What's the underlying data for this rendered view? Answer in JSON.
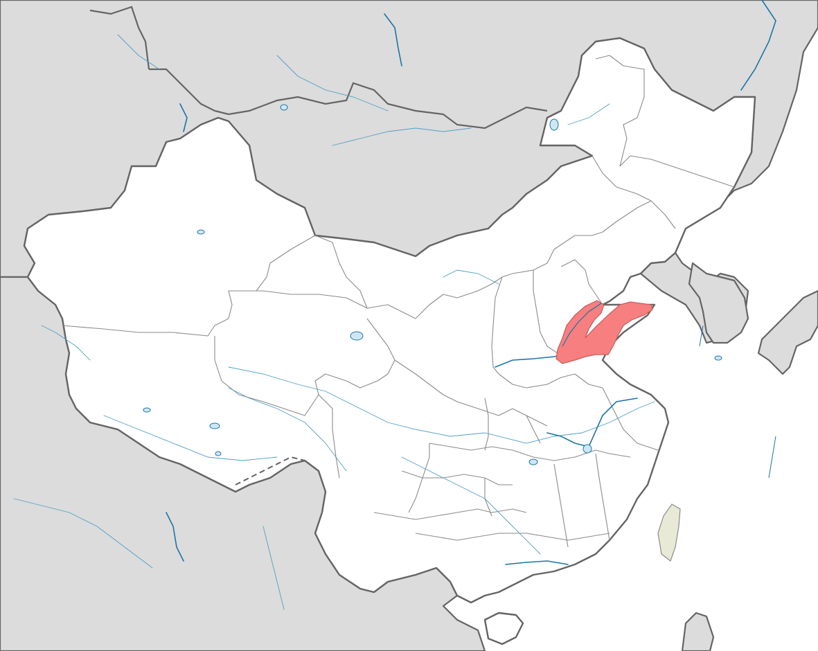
{
  "map": {
    "highlighted_region": "Shandong",
    "highlight_color": "#f77f7f",
    "highlight_stroke": "#c85a5a",
    "taiwan_color": "#e8ead6",
    "foreign_land_color": "#dcdcdc",
    "china_land_color": "#ffffff",
    "water_color": "#ffffff",
    "river_color": "#1a73a6"
  }
}
